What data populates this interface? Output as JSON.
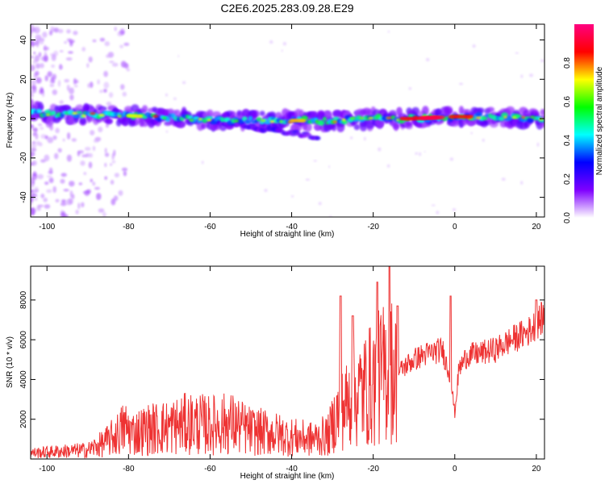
{
  "title": "C2E6.2025.283.09.28.E29",
  "chart_data": [
    {
      "type": "heatmap",
      "xlabel": "Height of straight line (km)",
      "ylabel": "Frequency (Hz)",
      "xlim": [
        -104,
        22
      ],
      "ylim": [
        -50,
        48
      ],
      "x_ticks": [
        -100,
        -80,
        -60,
        -40,
        -20,
        0,
        20
      ],
      "y_ticks": [
        -40,
        -20,
        0,
        20,
        40
      ],
      "ridge": {
        "x": [
          -104,
          -95,
          -85,
          -75,
          -65,
          -55,
          -45,
          -38,
          -30,
          -20,
          -10,
          0,
          10,
          22
        ],
        "y": [
          3,
          2,
          2,
          1,
          0,
          -1,
          -1,
          -1,
          -1,
          0,
          0,
          1,
          1,
          0
        ]
      },
      "colorbar": {
        "label": "Normalized spectral amplitude",
        "range": [
          0,
          1
        ],
        "ticks": [
          0.0,
          0.2,
          0.4,
          0.6,
          0.8
        ],
        "colors": [
          "#ffffff",
          "#7f00ff",
          "#0000ff",
          "#00ffff",
          "#00ff00",
          "#ffff00",
          "#ff0000",
          "#ff0080"
        ]
      }
    },
    {
      "type": "line",
      "xlabel": "Height of straight line (km)",
      "ylabel": "SNR (10 * v/v)",
      "xlim": [
        -104,
        22
      ],
      "ylim": [
        0,
        9700
      ],
      "x_ticks": [
        -100,
        -80,
        -60,
        -40,
        -20,
        0,
        20
      ],
      "y_ticks": [
        2000,
        4000,
        6000,
        8000
      ],
      "series": [
        {
          "color": "#ee3333",
          "x": [
            -104,
            -100,
            -95,
            -90,
            -86,
            -83,
            -81,
            -79,
            -75,
            -70,
            -65,
            -60,
            -55,
            -50,
            -45,
            -40,
            -35,
            -31,
            -29,
            -27,
            -25,
            -22,
            -20,
            -18,
            -16,
            -14,
            -12,
            -10,
            -8,
            -5,
            -3,
            -1,
            0,
            1,
            3,
            6,
            10,
            14,
            18,
            22
          ],
          "y": [
            300,
            350,
            400,
            450,
            800,
            1200,
            1600,
            1300,
            1500,
            1600,
            1800,
            1700,
            1800,
            1400,
            1300,
            1100,
            1000,
            1200,
            2200,
            2600,
            3100,
            3500,
            3800,
            4200,
            4500,
            4300,
            4700,
            5000,
            5200,
            5400,
            5500,
            4000,
            2300,
            4500,
            5200,
            5300,
            5500,
            6000,
            6400,
            7200
          ]
        }
      ]
    }
  ]
}
